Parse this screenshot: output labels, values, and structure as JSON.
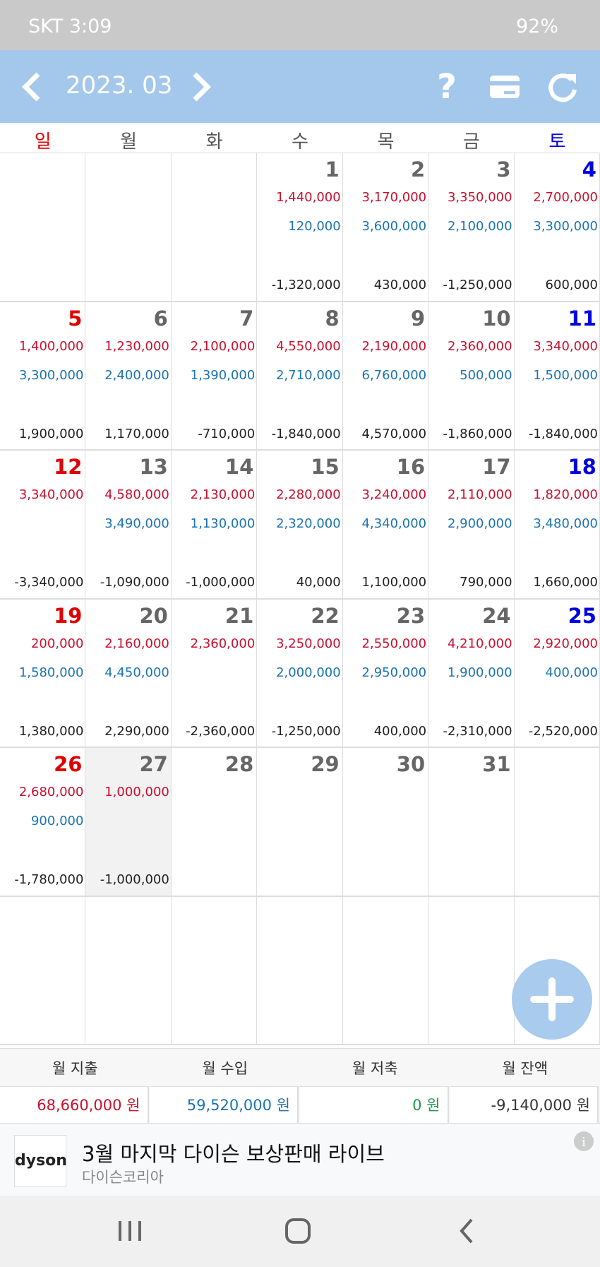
{
  "status_bar": {
    "carrier_time": "SKT 3:09",
    "battery": "92%"
  },
  "header": {
    "month": "2023. 03"
  },
  "calendar": {
    "weekdays": [
      "일",
      "월",
      "화",
      "수",
      "목",
      "금",
      "토"
    ],
    "weeks": [
      [
        null,
        null,
        null,
        {
          "day": 1,
          "expense": "1,440,000",
          "income": "120,000",
          "balance": "-1,320,000"
        },
        {
          "day": 2,
          "expense": "3,170,000",
          "income": "3,600,000",
          "balance": "430,000"
        },
        {
          "day": 3,
          "expense": "3,350,000",
          "income": "2,100,000",
          "balance": "-1,250,000"
        },
        {
          "day": 4,
          "expense": "2,700,000",
          "income": "3,300,000",
          "balance": "600,000"
        }
      ],
      [
        {
          "day": 5,
          "expense": "1,400,000",
          "income": "3,300,000",
          "balance": "1,900,000"
        },
        {
          "day": 6,
          "expense": "1,230,000",
          "income": "2,400,000",
          "balance": "1,170,000"
        },
        {
          "day": 7,
          "expense": "2,100,000",
          "income": "1,390,000",
          "balance": "-710,000"
        },
        {
          "day": 8,
          "expense": "4,550,000",
          "income": "2,710,000",
          "balance": "-1,840,000"
        },
        {
          "day": 9,
          "expense": "2,190,000",
          "income": "6,760,000",
          "balance": "4,570,000"
        },
        {
          "day": 10,
          "expense": "2,360,000",
          "income": "500,000",
          "balance": "-1,860,000"
        },
        {
          "day": 11,
          "expense": "3,340,000",
          "income": "1,500,000",
          "balance": "-1,840,000"
        }
      ],
      [
        {
          "day": 12,
          "expense": "3,340,000",
          "balance": "-3,340,000"
        },
        {
          "day": 13,
          "expense": "4,580,000",
          "income": "3,490,000",
          "balance": "-1,090,000"
        },
        {
          "day": 14,
          "expense": "2,130,000",
          "income": "1,130,000",
          "balance": "-1,000,000"
        },
        {
          "day": 15,
          "expense": "2,280,000",
          "income": "2,320,000",
          "balance": "40,000"
        },
        {
          "day": 16,
          "expense": "3,240,000",
          "income": "4,340,000",
          "balance": "1,100,000"
        },
        {
          "day": 17,
          "expense": "2,110,000",
          "income": "2,900,000",
          "balance": "790,000"
        },
        {
          "day": 18,
          "expense": "1,820,000",
          "income": "3,480,000",
          "balance": "1,660,000"
        }
      ],
      [
        {
          "day": 19,
          "expense": "200,000",
          "income": "1,580,000",
          "balance": "1,380,000"
        },
        {
          "day": 20,
          "expense": "2,160,000",
          "income": "4,450,000",
          "balance": "2,290,000"
        },
        {
          "day": 21,
          "expense": "2,360,000",
          "balance": "-2,360,000"
        },
        {
          "day": 22,
          "expense": "3,250,000",
          "income": "2,000,000",
          "balance": "-1,250,000"
        },
        {
          "day": 23,
          "expense": "2,550,000",
          "income": "2,950,000",
          "balance": "400,000"
        },
        {
          "day": 24,
          "expense": "4,210,000",
          "income": "1,900,000",
          "balance": "-2,310,000"
        },
        {
          "day": 25,
          "expense": "2,920,000",
          "income": "400,000",
          "balance": "-2,520,000"
        }
      ],
      [
        {
          "day": 26,
          "expense": "2,680,000",
          "income": "900,000",
          "balance": "-1,780,000"
        },
        {
          "day": 27,
          "expense": "1,000,000",
          "balance": "-1,000,000",
          "today": true
        },
        {
          "day": 28
        },
        {
          "day": 29
        },
        {
          "day": 30
        },
        {
          "day": 31
        },
        null
      ]
    ]
  },
  "summary": {
    "labels": [
      "월 지출",
      "월 수입",
      "월 저축",
      "월 잔액"
    ],
    "values": [
      "68,660,000 원",
      "59,520,000 원",
      "0 원",
      "-9,140,000 원"
    ],
    "colors": [
      "#c8102e",
      "#1a73b0",
      "#1a9a4a",
      "#333333"
    ]
  },
  "ad": {
    "logo": "dyson",
    "title": "3월 마지막 다이슨 보상판매 라이브",
    "advertiser": "다이슨코리아"
  }
}
